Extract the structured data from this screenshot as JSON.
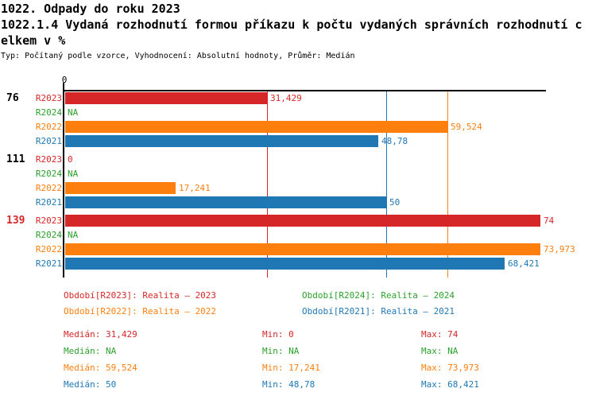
{
  "header": {
    "title_line1": "1022. Odpady do roku 2023",
    "title_line2": "1022.1.4 Vydaná rozhodnutí formou příkazu k počtu vydaných správních rozhodnutí c",
    "title_line3": "elkem v %",
    "meta": "Typ: Počítaný podle vzorce, Vyhodnocení: Absolutní hodnoty, Průměr: Medián"
  },
  "colors": {
    "red": "#d62728",
    "green": "#2ca02c",
    "orange": "#ff7f0e",
    "blue": "#1f77b4",
    "black": "#000000",
    "background": "#ffffff"
  },
  "chart_data": {
    "type": "bar",
    "orientation": "horizontal",
    "title": "1022. Odpady do roku 2023",
    "subtitle": "1022.1.4 Vydaná rozhodnutí formou příkazu k počtu vydaných správních rozhodnutí celkem v %",
    "note": "Typ: Počítaný podle vzorce, Vyhodnocení: Absolutní hodnoty, Průměr: Medián",
    "xlim": [
      0,
      74
    ],
    "grid": false,
    "legend_position": "bottom",
    "x_ticks": [
      {
        "value": 0,
        "label": "0"
      }
    ],
    "series": [
      {
        "name": "R2023",
        "color": "#d62728",
        "legend": "Období[R2023]: Realita – 2023",
        "median": 31.429,
        "median_label": "Medián: 31,429",
        "min_label": "Min: 0",
        "max_label": "Max: 74"
      },
      {
        "name": "R2024",
        "color": "#2ca02c",
        "legend": "Období[R2024]: Realita – 2024",
        "median": null,
        "median_label": "Medián: NA",
        "min_label": "Min: NA",
        "max_label": "Max: NA"
      },
      {
        "name": "R2022",
        "color": "#ff7f0e",
        "legend": "Období[R2022]: Realita – 2022",
        "median": 59.524,
        "median_label": "Medián: 59,524",
        "min_label": "Min: 17,241",
        "max_label": "Max: 73,973"
      },
      {
        "name": "R2021",
        "color": "#1f77b4",
        "legend": "Období[R2021]: Realita – 2021",
        "median": 50,
        "median_label": "Medián: 50",
        "min_label": "Min: 48,78",
        "max_label": "Max: 68,421"
      }
    ],
    "groups": [
      {
        "label": "76",
        "highlight": false,
        "values": [
          {
            "series": "R2023",
            "value": 31.429,
            "label": "31,429"
          },
          {
            "series": "R2024",
            "value": null,
            "label": "NA"
          },
          {
            "series": "R2022",
            "value": 59.524,
            "label": "59,524"
          },
          {
            "series": "R2021",
            "value": 48.78,
            "label": "48,78"
          }
        ]
      },
      {
        "label": "111",
        "highlight": false,
        "values": [
          {
            "series": "R2023",
            "value": 0,
            "label": "0"
          },
          {
            "series": "R2024",
            "value": null,
            "label": "NA"
          },
          {
            "series": "R2022",
            "value": 17.241,
            "label": "17,241"
          },
          {
            "series": "R2021",
            "value": 50,
            "label": "50"
          }
        ]
      },
      {
        "label": "139",
        "highlight": true,
        "values": [
          {
            "series": "R2023",
            "value": 74,
            "label": "74"
          },
          {
            "series": "R2024",
            "value": null,
            "label": "NA"
          },
          {
            "series": "R2022",
            "value": 73.973,
            "label": "73,973"
          },
          {
            "series": "R2021",
            "value": 68.421,
            "label": "68,421"
          }
        ]
      }
    ],
    "median_lines": [
      {
        "series": "R2023",
        "value": 31.429
      },
      {
        "series": "R2021",
        "value": 50
      },
      {
        "series": "R2022",
        "value": 59.524
      }
    ]
  }
}
